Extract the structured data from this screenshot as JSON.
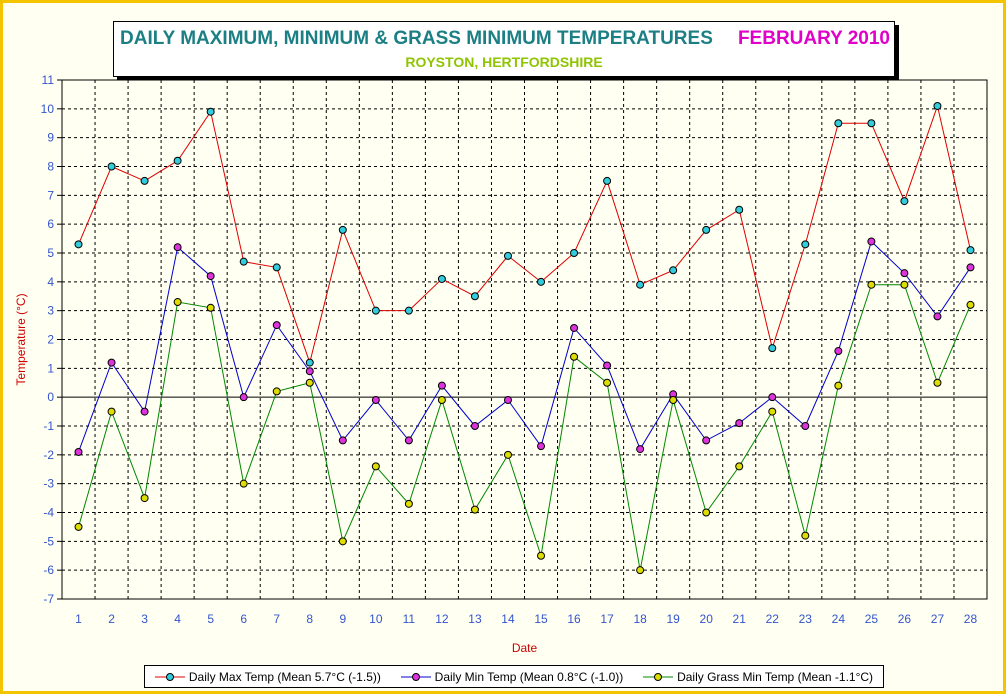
{
  "title": {
    "main": "DAILY MAXIMUM, MINIMUM & GRASS MINIMUM TEMPERATURES",
    "month": "FEBRUARY 2010",
    "subtitle": "ROYSTON, HERTFORDSHIRE"
  },
  "colors": {
    "frame_border": "#f5c400",
    "title_main": "#1b7f84",
    "title_month": "#e000c8",
    "subtitle": "#8fc400",
    "axis_label": "#cc0000",
    "tick_label": "#3355cc"
  },
  "chart_data": {
    "type": "line",
    "xlabel": "Date",
    "ylabel": "Temperature (°C)",
    "ylim": [
      -7,
      11
    ],
    "xlim": [
      0.5,
      28.5
    ],
    "grid": true,
    "legend": "bottom",
    "x": [
      1,
      2,
      3,
      4,
      5,
      6,
      7,
      8,
      9,
      10,
      11,
      12,
      13,
      14,
      15,
      16,
      17,
      18,
      19,
      20,
      21,
      22,
      23,
      24,
      25,
      26,
      27,
      28
    ],
    "x_tick_labels": [
      "1",
      "2",
      "3",
      "4",
      "5",
      "6",
      "7",
      "8",
      "9",
      "10",
      "11",
      "12",
      "13",
      "14",
      "15",
      "16",
      "17",
      "18",
      "19",
      "20",
      "21",
      "22",
      "23",
      "24",
      "25",
      "26",
      "27",
      "28"
    ],
    "y_tick_labels": [
      "-7",
      "-6",
      "-5",
      "-4",
      "-3",
      "-2",
      "-1",
      "0",
      "1",
      "2",
      "3",
      "4",
      "5",
      "6",
      "7",
      "8",
      "9",
      "10",
      "11"
    ],
    "series": [
      {
        "name": "Daily Max Temp (Mean 5.7°C (-1.5))",
        "line_color": "#dd0000",
        "marker_color": "#33ccdd",
        "values": [
          5.3,
          8.0,
          7.5,
          8.2,
          9.9,
          4.7,
          4.5,
          1.2,
          5.8,
          3.0,
          3.0,
          4.1,
          3.5,
          4.9,
          4.0,
          5.0,
          7.5,
          3.9,
          4.4,
          5.8,
          6.5,
          1.7,
          5.3,
          9.5,
          9.5,
          6.8,
          10.1,
          5.1
        ]
      },
      {
        "name": "Daily Min Temp (Mean 0.8°C (-1.0))",
        "line_color": "#0000cc",
        "marker_color": "#dd33dd",
        "values": [
          -1.9,
          1.2,
          -0.5,
          5.2,
          4.2,
          0.0,
          2.5,
          0.9,
          -1.5,
          -0.1,
          -1.5,
          0.4,
          -1.0,
          -0.1,
          -1.7,
          2.4,
          1.1,
          -1.8,
          0.1,
          -1.5,
          -0.9,
          0.0,
          -1.0,
          1.6,
          5.4,
          4.3,
          2.8,
          4.5
        ]
      },
      {
        "name": "Daily Grass Min Temp (Mean -1.1°C)",
        "line_color": "#008800",
        "marker_color": "#dddd00",
        "values": [
          -4.5,
          -0.5,
          -3.5,
          3.3,
          3.1,
          -3.0,
          0.2,
          0.5,
          -5.0,
          -2.4,
          -3.7,
          -0.1,
          -3.9,
          -2.0,
          -5.5,
          1.4,
          0.5,
          -6.0,
          -0.1,
          -4.0,
          -2.4,
          -0.5,
          -4.8,
          0.4,
          3.9,
          3.9,
          0.5,
          3.2
        ]
      }
    ]
  }
}
